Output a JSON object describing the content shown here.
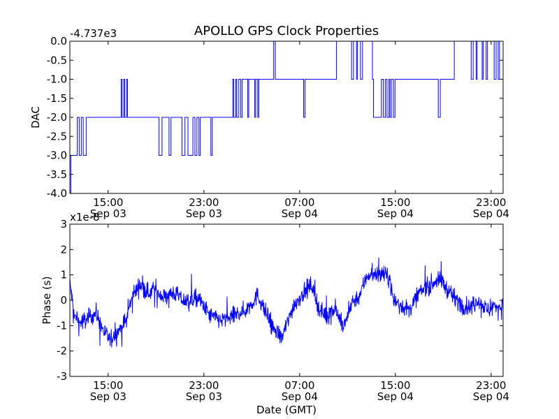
{
  "figure": {
    "title": "APOLLO GPS Clock Properties",
    "background": "#ffffff",
    "line_color": "#0000ff"
  },
  "chart_data": [
    {
      "type": "line",
      "ylabel": "DAC",
      "offset_label": "-4.737e3",
      "ylim": [
        -4.0,
        0.0
      ],
      "yticks": [
        0.0,
        -0.5,
        -1.0,
        -1.5,
        -2.0,
        -2.5,
        -3.0,
        -3.5,
        -4.0
      ],
      "ytick_labels": [
        "0.0",
        "-0.5",
        "-1.0",
        "-1.5",
        "-2.0",
        "-2.5",
        "-3.0",
        "-3.5",
        "-4.0"
      ],
      "xlim": [
        "2011-09-03T11:48",
        "2011-09-05T00:00"
      ],
      "xticks": [
        "2011-09-03T15:00",
        "2011-09-03T23:00",
        "2011-09-04T07:00",
        "2011-09-04T15:00",
        "2011-09-04T23:00"
      ],
      "xtick_labels": [
        [
          "15:00",
          "Sep 03"
        ],
        [
          "23:00",
          "Sep 03"
        ],
        [
          "07:00",
          "Sep 04"
        ],
        [
          "15:00",
          "Sep 04"
        ],
        [
          "23:00",
          "Sep 04"
        ]
      ],
      "series": [
        {
          "style": "step",
          "x": [
            "2011-09-03T11:48",
            "2011-09-03T11:53",
            "2011-09-03T11:58",
            "2011-09-03T12:25",
            "2011-09-03T12:35",
            "2011-09-03T12:45",
            "2011-09-03T12:55",
            "2011-09-03T13:10",
            "2011-09-03T13:25",
            "2011-09-03T16:05",
            "2011-09-03T16:10",
            "2011-09-03T16:18",
            "2011-09-03T16:23",
            "2011-09-03T16:32",
            "2011-09-03T16:37",
            "2011-09-03T19:00",
            "2011-09-03T19:15",
            "2011-09-03T19:30",
            "2011-09-03T20:05",
            "2011-09-03T20:15",
            "2011-09-03T21:10",
            "2011-09-03T21:25",
            "2011-09-03T21:40",
            "2011-09-03T22:05",
            "2011-09-03T22:15",
            "2011-09-03T22:25",
            "2011-09-03T22:35",
            "2011-09-03T22:42",
            "2011-09-03T23:35",
            "2011-09-03T23:42",
            "2011-09-04T01:25",
            "2011-09-04T01:30",
            "2011-09-04T01:40",
            "2011-09-04T01:45",
            "2011-09-04T01:55",
            "2011-09-04T02:05",
            "2011-09-04T02:12",
            "2011-09-04T02:40",
            "2011-09-04T02:45",
            "2011-09-04T03:15",
            "2011-09-04T03:20",
            "2011-09-04T03:30",
            "2011-09-04T03:35",
            "2011-09-04T04:50",
            "2011-09-04T04:58",
            "2011-09-04T06:25",
            "2011-09-04T07:20",
            "2011-09-04T07:27",
            "2011-09-04T09:50",
            "2011-09-04T10:05",
            "2011-09-04T11:20",
            "2011-09-04T11:30",
            "2011-09-04T11:45",
            "2011-09-04T11:50",
            "2011-09-04T12:05",
            "2011-09-04T12:15",
            "2011-09-04T13:05",
            "2011-09-04T13:10",
            "2011-09-04T13:50",
            "2011-09-04T14:00",
            "2011-09-04T14:10",
            "2011-09-04T14:18",
            "2011-09-04T14:28",
            "2011-09-04T14:33",
            "2011-09-04T14:40",
            "2011-09-04T14:50",
            "2011-09-04T14:58",
            "2011-09-04T15:05",
            "2011-09-04T18:35",
            "2011-09-04T18:45",
            "2011-09-04T19:55",
            "2011-09-04T21:20",
            "2011-09-04T21:30",
            "2011-09-04T21:45",
            "2011-09-04T21:50",
            "2011-09-04T22:15",
            "2011-09-04T22:20",
            "2011-09-04T22:35",
            "2011-09-04T22:42",
            "2011-09-04T23:15",
            "2011-09-04T23:25",
            "2011-09-04T23:35",
            "2011-09-04T23:42",
            "2011-09-05T00:00"
          ],
          "y": [
            -4.0,
            -3.0,
            -3.0,
            -2.0,
            -3.0,
            -2.0,
            -3.0,
            -2.0,
            -2.0,
            -1.0,
            -2.0,
            -1.0,
            -2.0,
            -1.0,
            -2.0,
            -2.0,
            -3.0,
            -2.0,
            -3.0,
            -2.0,
            -3.0,
            -2.0,
            -3.0,
            -2.0,
            -3.0,
            -2.0,
            -3.0,
            -2.0,
            -3.0,
            -2.0,
            -1.0,
            -2.0,
            -1.0,
            -2.0,
            -1.0,
            -2.0,
            -1.0,
            -2.0,
            -1.0,
            -2.0,
            -1.0,
            -2.0,
            -1.0,
            0.0,
            -1.0,
            -1.0,
            -2.0,
            -1.0,
            -1.0,
            0.0,
            -1.0,
            0.0,
            -1.0,
            0.0,
            -1.0,
            0.0,
            -1.0,
            -2.0,
            -1.0,
            -2.0,
            -1.0,
            -2.0,
            -1.0,
            -2.0,
            -1.0,
            -2.0,
            -1.0,
            -1.0,
            -2.0,
            -1.0,
            0.0,
            -1.0,
            0.0,
            -1.0,
            0.0,
            -1.0,
            0.0,
            -1.0,
            0.0,
            -1.0,
            0.0,
            -1.0,
            0.0,
            0.0
          ]
        }
      ]
    },
    {
      "type": "line",
      "ylabel": "Phase (s)",
      "xlabel": "Date (GMT)",
      "offset_label": "x1e-8",
      "ylim": [
        -3,
        3
      ],
      "yticks": [
        3,
        2,
        1,
        0,
        -1,
        -2,
        -3
      ],
      "ytick_labels": [
        "3",
        "2",
        "1",
        "0",
        "-1",
        "-2",
        "-3"
      ],
      "xlim": [
        "2011-09-03T11:48",
        "2011-09-05T00:00"
      ],
      "xticks": [
        "2011-09-03T15:00",
        "2011-09-03T23:00",
        "2011-09-04T07:00",
        "2011-09-04T15:00",
        "2011-09-04T23:00"
      ],
      "xtick_labels": [
        [
          "15:00",
          "Sep 03"
        ],
        [
          "23:00",
          "Sep 03"
        ],
        [
          "07:00",
          "Sep 04"
        ],
        [
          "15:00",
          "Sep 04"
        ],
        [
          "23:00",
          "Sep 04"
        ]
      ],
      "series": [
        {
          "style": "noisy-line",
          "x": [
            "2011-09-03T11:48",
            "2011-09-03T12:10",
            "2011-09-03T12:40",
            "2011-09-03T13:20",
            "2011-09-03T14:00",
            "2011-09-03T14:30",
            "2011-09-03T15:10",
            "2011-09-03T15:40",
            "2011-09-03T16:30",
            "2011-09-03T17:00",
            "2011-09-03T17:40",
            "2011-09-03T18:20",
            "2011-09-03T19:00",
            "2011-09-03T19:40",
            "2011-09-03T20:30",
            "2011-09-03T21:30",
            "2011-09-03T22:30",
            "2011-09-03T23:30",
            "2011-09-04T00:30",
            "2011-09-04T01:30",
            "2011-09-04T02:30",
            "2011-09-04T03:30",
            "2011-09-04T04:00",
            "2011-09-04T04:40",
            "2011-09-04T05:30",
            "2011-09-04T06:30",
            "2011-09-04T07:20",
            "2011-09-04T08:00",
            "2011-09-04T08:40",
            "2011-09-04T09:20",
            "2011-09-04T10:00",
            "2011-09-04T10:40",
            "2011-09-04T11:20",
            "2011-09-04T12:00",
            "2011-09-04T12:40",
            "2011-09-04T13:30",
            "2011-09-04T14:30",
            "2011-09-04T14:50",
            "2011-09-04T15:30",
            "2011-09-04T16:10",
            "2011-09-04T16:50",
            "2011-09-04T17:30",
            "2011-09-04T18:10",
            "2011-09-04T18:50",
            "2011-09-04T19:30",
            "2011-09-04T20:10",
            "2011-09-04T20:40",
            "2011-09-04T21:20",
            "2011-09-04T22:00",
            "2011-09-04T22:40",
            "2011-09-04T23:20",
            "2011-09-05T00:00"
          ],
          "y": [
            0.7,
            -0.6,
            -0.9,
            -0.7,
            -0.5,
            -1.1,
            -1.6,
            -1.3,
            -0.8,
            0.2,
            0.6,
            0.3,
            0.4,
            0.1,
            0.3,
            -0.1,
            0.1,
            -0.6,
            -0.8,
            -0.6,
            -0.4,
            0.2,
            -0.3,
            -1.0,
            -1.5,
            -0.2,
            0.3,
            0.6,
            -0.4,
            -0.6,
            -0.3,
            -1.1,
            -0.1,
            0.2,
            1.0,
            1.1,
            0.9,
            0.0,
            -0.2,
            -0.4,
            0.2,
            0.5,
            0.7,
            0.8,
            0.3,
            0.0,
            -0.2,
            -0.3,
            0.0,
            -0.4,
            -0.2,
            -0.3
          ],
          "noise_amplitude": 0.45
        }
      ]
    }
  ]
}
